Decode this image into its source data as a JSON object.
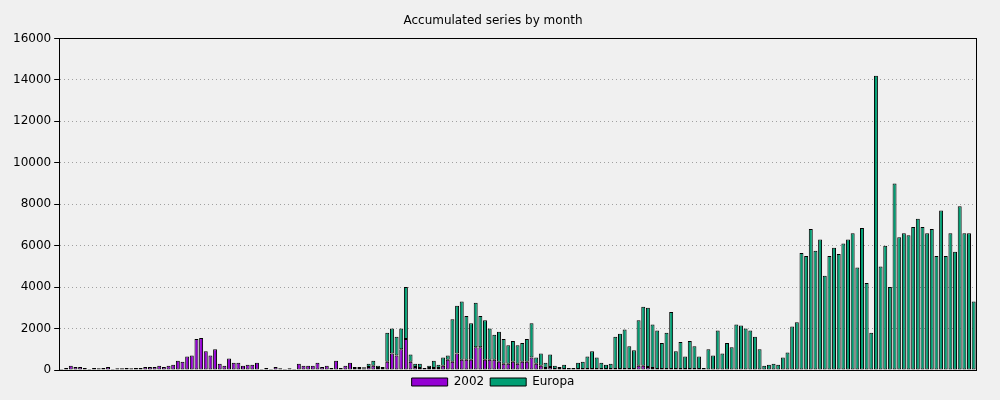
{
  "chart_data": {
    "type": "bar",
    "title": "Accumulated series by month",
    "categories": [
      null,
      null,
      null,
      null,
      null,
      null,
      null,
      null,
      null,
      null,
      null,
      null,
      null,
      null,
      null,
      null,
      null,
      null,
      null,
      null,
      null,
      null,
      null,
      null,
      null,
      null,
      null,
      null,
      null,
      null,
      null,
      null,
      null,
      null,
      null,
      null,
      null,
      null,
      null,
      null,
      null,
      null,
      null,
      null,
      null,
      null,
      null,
      null,
      null,
      null,
      null,
      null,
      null,
      null,
      null,
      null,
      null,
      null,
      null,
      null,
      null,
      null,
      null,
      null,
      null,
      null,
      null,
      null,
      null,
      null,
      null,
      null,
      null,
      null,
      null,
      null,
      null,
      null,
      null,
      null,
      null,
      null,
      null,
      null,
      null,
      null,
      null,
      null,
      null,
      null,
      null,
      null,
      null,
      null,
      null,
      null,
      null,
      null,
      null,
      null,
      null,
      null,
      null,
      null,
      null,
      null,
      null,
      null,
      null,
      null,
      null,
      null,
      null,
      null,
      null,
      null,
      null,
      null,
      null,
      null,
      null,
      null,
      null,
      null,
      null,
      null,
      null,
      null,
      null,
      null,
      null,
      null,
      null,
      null,
      null,
      null,
      null,
      null,
      null,
      null,
      null,
      null,
      null,
      null,
      null,
      null,
      null,
      null,
      null,
      null,
      null,
      null,
      null,
      null,
      null,
      null,
      null,
      null,
      null,
      null,
      null,
      null,
      null,
      null,
      null,
      null,
      null,
      null,
      null,
      null,
      null,
      null,
      null,
      null,
      null,
      null,
      null,
      null,
      null,
      null,
      null,
      null,
      null,
      null,
      null,
      null,
      null,
      null,
      null,
      null,
      null,
      null,
      null,
      null,
      null,
      null,
      null
    ],
    "series": [
      {
        "name": "2002",
        "color": "#9400d3",
        "values": [
          50,
          100,
          200,
          150,
          150,
          100,
          50,
          100,
          80,
          100,
          150,
          50,
          80,
          80,
          100,
          80,
          100,
          100,
          150,
          150,
          150,
          200,
          150,
          200,
          250,
          450,
          400,
          650,
          700,
          1500,
          1550,
          900,
          700,
          1000,
          300,
          200,
          550,
          350,
          350,
          200,
          250,
          250,
          350,
          50,
          100,
          50,
          150,
          80,
          50,
          80,
          50,
          300,
          200,
          200,
          200,
          350,
          150,
          200,
          100,
          450,
          100,
          200,
          350,
          100,
          100,
          80,
          150,
          200,
          100,
          100,
          400,
          800,
          700,
          1000,
          1500,
          400,
          150,
          100,
          50,
          100,
          100,
          100,
          200,
          500,
          400,
          800,
          500,
          500,
          500,
          1100,
          1100,
          500,
          500,
          500,
          400,
          300,
          300,
          400,
          300,
          400,
          400,
          600,
          300,
          200,
          100,
          150,
          50,
          50,
          50,
          50,
          50,
          50,
          50,
          50,
          50,
          50,
          50,
          50,
          50,
          50,
          50,
          50,
          50,
          50,
          200,
          200,
          150,
          100,
          50,
          50,
          50,
          50,
          50,
          50,
          50,
          50,
          50,
          50,
          20,
          20,
          20,
          20,
          20,
          20,
          20,
          20,
          20,
          20,
          20,
          20,
          20,
          20,
          20,
          20,
          20,
          20,
          20,
          20,
          20,
          20,
          20,
          20,
          20,
          20,
          20,
          20,
          20,
          20,
          20,
          20,
          20,
          20,
          20,
          20,
          20,
          0,
          0,
          0,
          0,
          0,
          0,
          0,
          0,
          0,
          0,
          0,
          0,
          0,
          0,
          0,
          0,
          0,
          0,
          0,
          0,
          0,
          0
        ]
      },
      {
        "name": "Europa",
        "color": "#009e73",
        "values": [
          0,
          0,
          0,
          0,
          0,
          0,
          0,
          0,
          0,
          0,
          0,
          0,
          0,
          0,
          0,
          0,
          0,
          0,
          0,
          0,
          0,
          0,
          0,
          0,
          0,
          0,
          0,
          0,
          0,
          0,
          0,
          0,
          0,
          0,
          0,
          0,
          0,
          0,
          0,
          0,
          0,
          0,
          0,
          0,
          0,
          0,
          0,
          0,
          0,
          0,
          0,
          0,
          0,
          0,
          0,
          0,
          0,
          0,
          0,
          0,
          0,
          0,
          0,
          50,
          50,
          50,
          150,
          250,
          100,
          50,
          1400,
          1200,
          900,
          1000,
          2500,
          350,
          150,
          200,
          50,
          100,
          350,
          150,
          400,
          200,
          2050,
          2300,
          2800,
          2100,
          1750,
          2150,
          1500,
          1900,
          1500,
          1200,
          1450,
          1200,
          900,
          1000,
          900,
          900,
          1100,
          1650,
          300,
          600,
          250,
          600,
          150,
          100,
          200,
          50,
          50,
          300,
          350,
          600,
          850,
          550,
          300,
          200,
          250,
          1550,
          1700,
          1900,
          1100,
          900,
          2200,
          2850,
          2850,
          2100,
          1850,
          1250,
          1750,
          2750,
          850,
          1300,
          600,
          1350,
          1100,
          600,
          80,
          980,
          680,
          1880,
          780,
          1280,
          1080,
          2180,
          2130,
          1980,
          1880,
          1580,
          980,
          180,
          230,
          280,
          230,
          580,
          830,
          2080,
          2280,
          5630,
          5480,
          6780,
          5730,
          6280,
          4530,
          5480,
          5880,
          5580,
          6080,
          6280,
          6580,
          4930,
          6830,
          4180,
          1780,
          14200,
          5000,
          6000,
          4000,
          9000,
          6400,
          6600,
          6500,
          6900,
          7300,
          6900,
          6600,
          6800,
          5500,
          7700,
          5500,
          6600,
          5700,
          7900,
          6600,
          6600,
          3300
        ]
      }
    ],
    "ylim": [
      0,
      16000
    ],
    "yticks": [
      0,
      2000,
      4000,
      6000,
      8000,
      10000,
      12000,
      14000,
      16000
    ],
    "stacked": true,
    "grid": true,
    "legend": "bottom",
    "tick_labels": "y"
  }
}
